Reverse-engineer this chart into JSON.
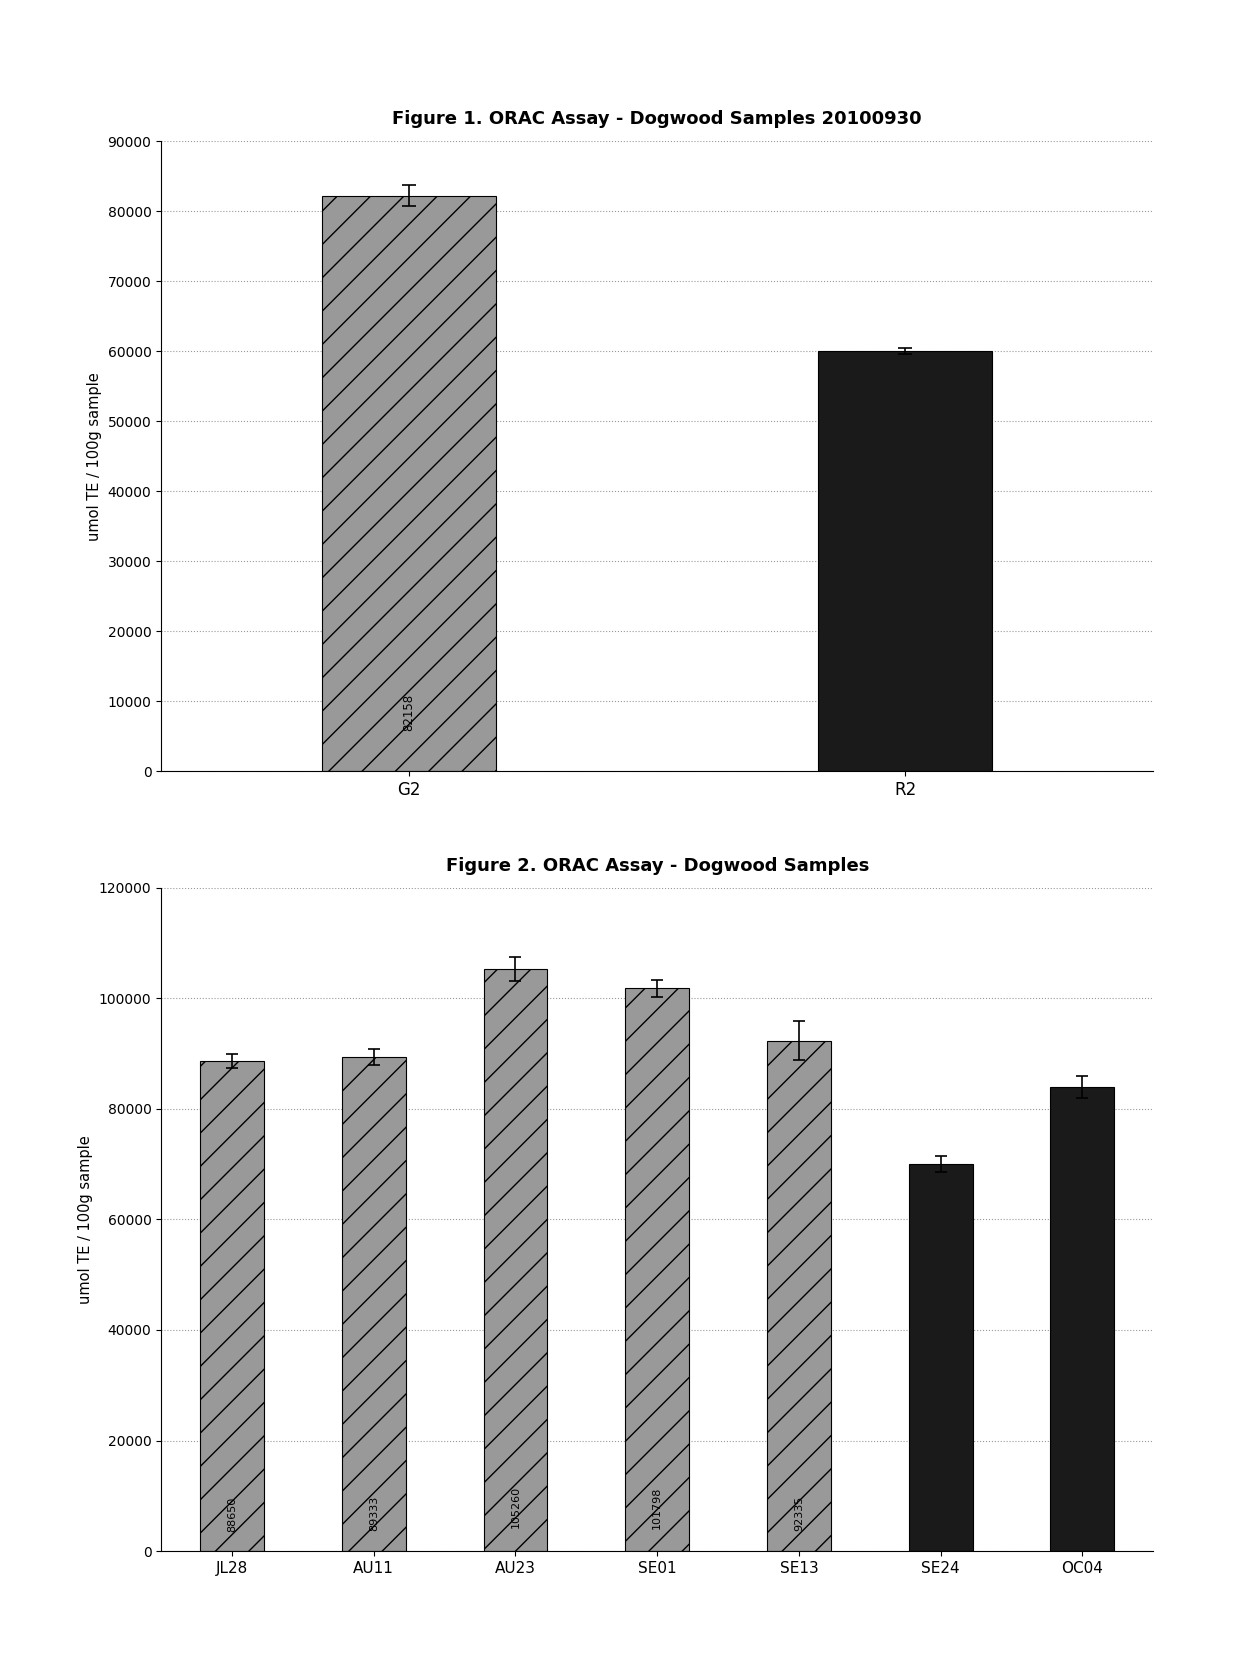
{
  "fig1": {
    "title": "Figure 1. ORAC Assay - Dogwood Samples 20100930",
    "categories": [
      "G2",
      "R2"
    ],
    "values": [
      82158,
      60000
    ],
    "errors": [
      1500,
      400
    ],
    "bar_colors": [
      "#999999",
      "#1a1a1a"
    ],
    "bar_hatches": [
      "/",
      ""
    ],
    "bar_labels": [
      "82158",
      ""
    ],
    "ylabel": "umol TE / 100g sample",
    "ylim": [
      0,
      90000
    ],
    "yticks": [
      0,
      10000,
      20000,
      30000,
      40000,
      50000,
      60000,
      70000,
      80000,
      90000
    ]
  },
  "fig2": {
    "title": "Figure 2. ORAC Assay - Dogwood Samples",
    "categories": [
      "JL28",
      "AU11",
      "AU23",
      "SE01",
      "SE13",
      "SE24",
      "OC04"
    ],
    "values": [
      88650,
      89333,
      105260,
      101798,
      92335,
      70000,
      84000
    ],
    "errors": [
      1200,
      1500,
      2200,
      1500,
      3500,
      1500,
      2000
    ],
    "bar_colors": [
      "#999999",
      "#999999",
      "#999999",
      "#999999",
      "#999999",
      "#1a1a1a",
      "#1a1a1a"
    ],
    "bar_hatches": [
      "/",
      "/",
      "/",
      "/",
      "/",
      "",
      ""
    ],
    "bar_labels": [
      "88650",
      "89333",
      "105260",
      "101798",
      "92335",
      "",
      ""
    ],
    "ylabel": "umol TE / 100g sample",
    "ylim": [
      0,
      120000
    ],
    "yticks": [
      0,
      20000,
      40000,
      60000,
      80000,
      100000,
      120000
    ]
  }
}
